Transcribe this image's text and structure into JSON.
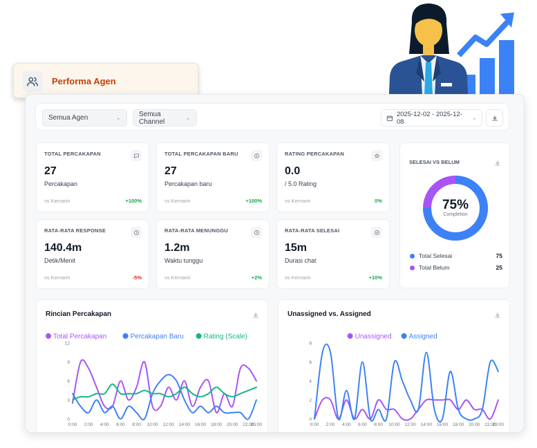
{
  "header": {
    "title": "Performa Agen",
    "icon": "users-icon"
  },
  "filters": {
    "agent": "Semua Agen",
    "channel": "Semua Channel",
    "date_range": "2025-12-02 - 2025-12-08"
  },
  "metrics": [
    {
      "title": "TOTAL PERCAKAPAN",
      "value": "27",
      "unit": "Percakapan",
      "vs": "vs Kemarin",
      "change": "+100%",
      "trend": "positive",
      "icon": "chat-icon"
    },
    {
      "title": "TOTAL PERCAKAPAN BARU",
      "value": "27",
      "unit": "Percakapan baru",
      "vs": "vs Kemarin",
      "change": "+100%",
      "trend": "positive",
      "icon": "info-icon"
    },
    {
      "title": "RATING PERCAKAPAN",
      "value": "0.0",
      "unit": "/ 5.0 Rating",
      "vs": "vs Kemarin",
      "change": "0%",
      "trend": "positive",
      "icon": "star-icon"
    },
    {
      "title": "RATA-RATA RESPONSE",
      "value": "140.4m",
      "unit": "Detik/Menit",
      "vs": "vs Kemarin",
      "change": "-5%",
      "trend": "negative",
      "icon": "clock-icon"
    },
    {
      "title": "RATA-RATA MENUNGGU",
      "value": "1.2m",
      "unit": "Waktu tunggu",
      "vs": "vs Kemarin",
      "change": "+2%",
      "trend": "positive",
      "icon": "clock-icon"
    },
    {
      "title": "RATA-RATA SELESAI",
      "value": "15m",
      "unit": "Durasi chat",
      "vs": "vs Kemarin",
      "change": "+10%",
      "trend": "positive",
      "icon": "check-circle-icon"
    }
  ],
  "completion": {
    "title": "SELESAI VS BELUM",
    "percent": "75%",
    "percent_label": "Completion",
    "items": [
      {
        "label": "Total Selesai",
        "value": "75",
        "color": "#3b82f6"
      },
      {
        "label": "Total Belum",
        "value": "25",
        "color": "#a855f7"
      }
    ]
  },
  "chart_data": [
    {
      "type": "line",
      "title": "Rincian Percakapan",
      "x": [
        "0:00",
        "1:00",
        "2:00",
        "3:00",
        "4:00",
        "5:00",
        "6:00",
        "7:00",
        "8:00",
        "9:00",
        "10:00",
        "11:00",
        "12:00",
        "13:00",
        "14:00",
        "15:00",
        "16:00",
        "17:00",
        "18:00",
        "19:00",
        "20:00",
        "21:00",
        "22:00",
        "23:00"
      ],
      "xticks": [
        "0:00",
        "2:00",
        "4:00",
        "6:00",
        "8:00",
        "10:00",
        "12:00",
        "14:00",
        "16:00",
        "18:00",
        "20:00",
        "22:00",
        "23:00"
      ],
      "yticks": [
        "0",
        "3",
        "6",
        "9",
        "12"
      ],
      "ylim": [
        0,
        12
      ],
      "legend_position": "top-center",
      "series": [
        {
          "name": "Total Percakapan",
          "color": "#a855f7",
          "values": [
            2.5,
            9,
            8,
            5,
            2,
            2,
            6,
            3,
            5,
            9,
            2,
            2,
            5,
            3,
            6,
            2,
            5,
            6,
            1,
            4,
            2,
            8,
            8,
            6
          ]
        },
        {
          "name": "Percakapan Baru",
          "color": "#3b82f6",
          "values": [
            4,
            2,
            1,
            3,
            1,
            2,
            0,
            2,
            1,
            0,
            4,
            6,
            7,
            6,
            3,
            1,
            2,
            1,
            2,
            1,
            1,
            1,
            0,
            3
          ]
        },
        {
          "name": "Rating (Scale)",
          "color": "#10b981",
          "values": [
            3,
            3.5,
            3.5,
            4,
            4,
            5.5,
            4,
            4,
            4,
            4.5,
            4,
            4,
            3.5,
            4,
            5,
            4,
            3.5,
            4,
            5,
            4,
            3.5,
            4,
            4.5,
            5
          ]
        }
      ]
    },
    {
      "type": "line",
      "title": "Unassigned vs. Assigned",
      "x": [
        "0:00",
        "1:00",
        "2:00",
        "3:00",
        "4:00",
        "5:00",
        "6:00",
        "7:00",
        "8:00",
        "9:00",
        "10:00",
        "11:00",
        "12:00",
        "13:00",
        "14:00",
        "15:00",
        "16:00",
        "17:00",
        "18:00",
        "19:00",
        "20:00",
        "21:00",
        "22:00",
        "23:00"
      ],
      "xticks": [
        "0:00",
        "2:00",
        "4:00",
        "6:00",
        "8:00",
        "10:00",
        "12:00",
        "14:00",
        "16:00",
        "18:00",
        "20:00",
        "22:00",
        "23:00"
      ],
      "yticks": [
        "0",
        "2",
        "4",
        "6",
        "8"
      ],
      "ylim": [
        0,
        8
      ],
      "legend_position": "top-center",
      "series": [
        {
          "name": "Unassigned",
          "color": "#a855f7",
          "values": [
            0,
            2,
            2,
            0,
            2,
            0,
            1,
            0,
            2,
            1,
            1,
            0,
            0,
            1,
            2,
            2,
            2,
            2,
            1,
            2,
            1,
            1,
            0,
            2
          ]
        },
        {
          "name": "Assigned",
          "color": "#3b82f6",
          "values": [
            0,
            7,
            7,
            0,
            3,
            0,
            6,
            0,
            1,
            0,
            6,
            4,
            2,
            1,
            7,
            1,
            0,
            5,
            1,
            0,
            0,
            1,
            6,
            5
          ]
        }
      ]
    }
  ]
}
